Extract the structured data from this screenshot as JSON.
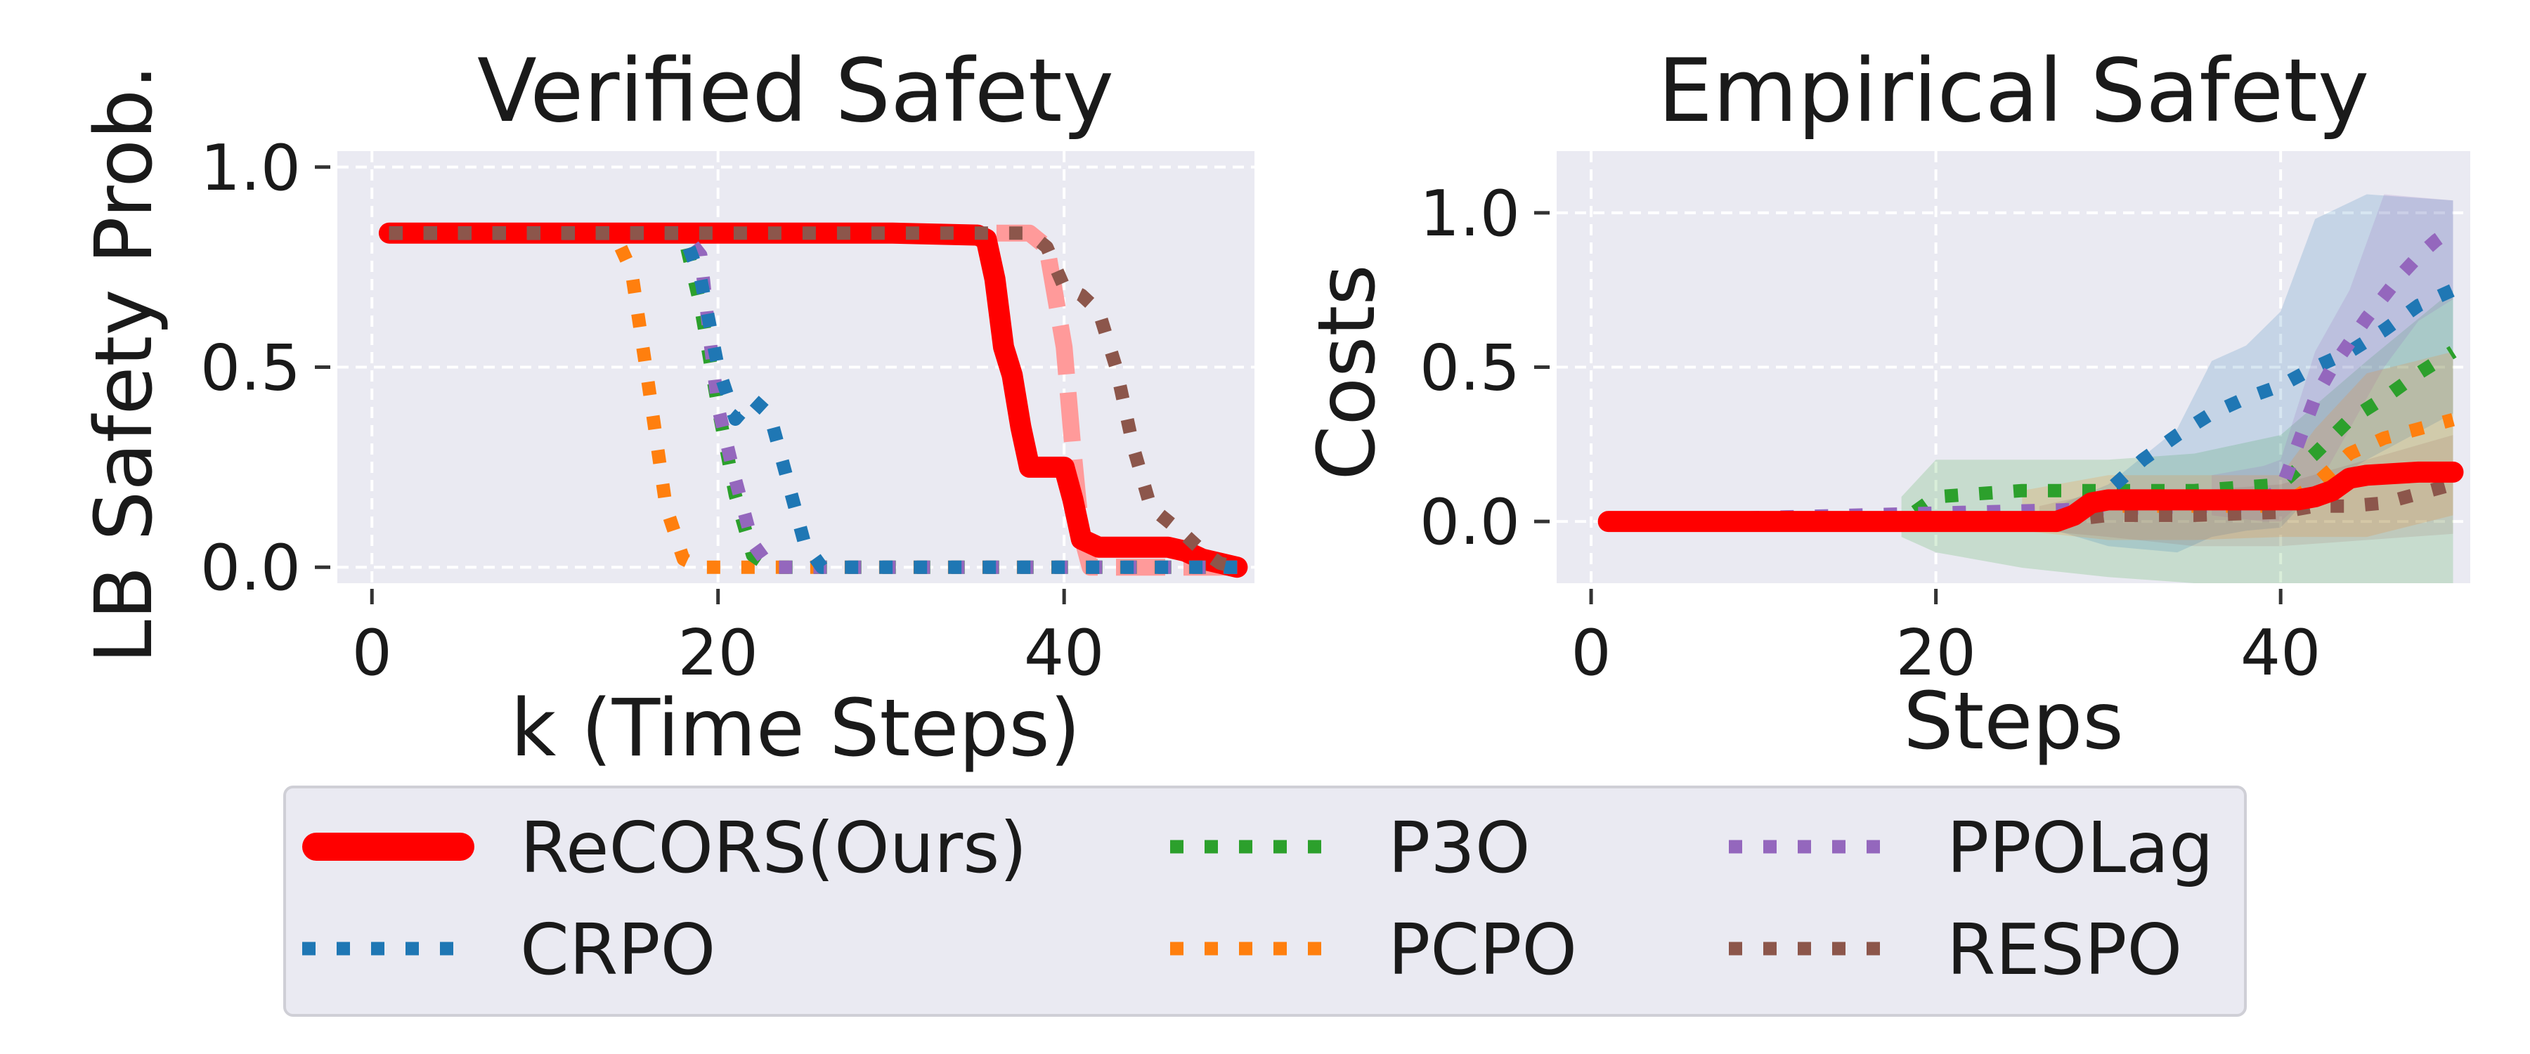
{
  "colors": {
    "panel_bg": "#eaeaf2",
    "grid": "#ffffff",
    "recors": "#ff0000",
    "recors_light": "#ff9a9a",
    "crpo": "#1f77b4",
    "p3o": "#2ca02c",
    "pcpo": "#ff7f0e",
    "ppolag": "#9467bd",
    "respo": "#8c564b"
  },
  "chart_data": [
    {
      "type": "line",
      "title": "Verified Safety",
      "xlabel": "k (Time Steps)",
      "ylabel": "LB Safety Prob.",
      "xlim": [
        -2,
        51
      ],
      "ylim": [
        -0.04,
        1.04
      ],
      "xticks": [
        0,
        20,
        40
      ],
      "xtick_labels": [
        "0",
        "20",
        "40"
      ],
      "yticks": [
        0.0,
        0.5,
        1.0
      ],
      "ytick_labels": [
        "0.0",
        "0.5",
        "1.0"
      ],
      "grid": true,
      "series": [
        {
          "name": "ReCORS(Ours) (lower bound, faint)",
          "key": "recors_light",
          "style": "dashed",
          "x": [
            1,
            37,
            38,
            39,
            40,
            40.5,
            41,
            41.5,
            50
          ],
          "y": [
            0.835,
            0.835,
            0.835,
            0.8,
            0.55,
            0.3,
            0.08,
            0.0,
            0.0
          ]
        },
        {
          "name": "ReCORS(Ours)",
          "key": "recors",
          "style": "solid",
          "x": [
            1,
            30,
            35,
            35.5,
            36,
            36.5,
            37,
            37.5,
            38,
            39,
            40,
            40.5,
            41,
            42,
            46,
            47,
            48,
            49,
            50
          ],
          "y": [
            0.835,
            0.835,
            0.83,
            0.82,
            0.72,
            0.55,
            0.48,
            0.35,
            0.25,
            0.25,
            0.25,
            0.17,
            0.07,
            0.05,
            0.05,
            0.04,
            0.02,
            0.01,
            0.0
          ]
        },
        {
          "name": "PCPO",
          "key": "pcpo",
          "style": "dotted",
          "x": [
            1,
            14,
            15,
            16,
            17,
            18,
            19,
            20,
            50
          ],
          "y": [
            0.835,
            0.835,
            0.74,
            0.45,
            0.15,
            0.02,
            0.0,
            0.0,
            0.0
          ]
        },
        {
          "name": "P3O",
          "key": "p3o",
          "style": "dotted",
          "x": [
            1,
            18,
            19,
            20,
            21,
            22,
            23,
            50
          ],
          "y": [
            0.835,
            0.835,
            0.65,
            0.4,
            0.18,
            0.03,
            0.0,
            0.0
          ]
        },
        {
          "name": "PPOLag",
          "key": "ppolag",
          "style": "dotted",
          "x": [
            1,
            18,
            19,
            19.5,
            20,
            21,
            22,
            23,
            50
          ],
          "y": [
            0.835,
            0.835,
            0.78,
            0.58,
            0.4,
            0.22,
            0.06,
            0.0,
            0.0
          ]
        },
        {
          "name": "CRPO",
          "key": "crpo",
          "style": "dotted",
          "x": [
            1,
            18,
            19,
            20,
            21,
            22,
            23,
            24,
            25,
            26,
            50
          ],
          "y": [
            0.835,
            0.835,
            0.72,
            0.5,
            0.37,
            0.42,
            0.38,
            0.22,
            0.06,
            0.0,
            0.0
          ]
        },
        {
          "name": "RESPO",
          "key": "respo",
          "style": "dotted",
          "x": [
            1,
            38,
            39,
            40,
            41,
            42,
            43,
            44,
            45,
            47,
            48,
            49,
            50
          ],
          "y": [
            0.835,
            0.835,
            0.8,
            0.7,
            0.68,
            0.64,
            0.5,
            0.3,
            0.15,
            0.08,
            0.04,
            0.01,
            0.0
          ]
        }
      ]
    },
    {
      "type": "line",
      "title": "Empirical Safety",
      "xlabel": "Steps",
      "ylabel": "Costs",
      "xlim": [
        -2,
        51
      ],
      "ylim": [
        -0.2,
        1.2
      ],
      "xticks": [
        0,
        20,
        40
      ],
      "xtick_labels": [
        "0",
        "20",
        "40"
      ],
      "yticks": [
        0.0,
        0.5,
        1.0
      ],
      "ytick_labels": [
        "0.0",
        "0.5",
        "1.0"
      ],
      "grid": true,
      "bands": [
        {
          "key": "p3o",
          "opacity": 0.18,
          "x": [
            18,
            20,
            25,
            30,
            35,
            40,
            45,
            50
          ],
          "upper": [
            0.08,
            0.2,
            0.2,
            0.2,
            0.22,
            0.28,
            0.52,
            0.75
          ],
          "lower": [
            -0.05,
            -0.1,
            -0.15,
            -0.18,
            -0.2,
            -0.2,
            -0.2,
            -0.2
          ]
        },
        {
          "key": "crpo",
          "opacity": 0.18,
          "x": [
            27,
            30,
            34,
            36,
            38,
            40,
            42,
            45,
            50
          ],
          "upper": [
            0.05,
            0.12,
            0.3,
            0.52,
            0.57,
            0.68,
            0.98,
            1.06,
            1.04
          ],
          "lower": [
            -0.03,
            -0.08,
            -0.1,
            -0.05,
            -0.03,
            -0.02,
            0.1,
            0.2,
            0.35
          ]
        },
        {
          "key": "ppolag",
          "opacity": 0.18,
          "x": [
            36,
            39,
            40,
            42,
            44,
            46,
            48,
            50
          ],
          "upper": [
            0.15,
            0.18,
            0.2,
            0.55,
            0.75,
            1.06,
            1.05,
            1.04
          ],
          "lower": [
            0.02,
            0.0,
            0.0,
            0.1,
            0.3,
            0.5,
            0.65,
            0.72
          ]
        },
        {
          "key": "pcpo",
          "opacity": 0.18,
          "x": [
            25,
            30,
            35,
            40,
            42,
            45,
            50
          ],
          "upper": [
            0.1,
            0.15,
            0.15,
            0.15,
            0.3,
            0.48,
            0.55
          ],
          "lower": [
            -0.03,
            -0.06,
            -0.06,
            -0.05,
            -0.05,
            -0.05,
            0.02
          ]
        },
        {
          "key": "respo",
          "opacity": 0.14,
          "x": [
            26,
            30,
            35,
            40,
            45,
            50
          ],
          "upper": [
            0.05,
            0.1,
            0.1,
            0.12,
            0.2,
            0.28
          ],
          "lower": [
            -0.03,
            -0.05,
            -0.08,
            -0.08,
            -0.06,
            -0.04
          ]
        }
      ],
      "series": [
        {
          "name": "P3O",
          "key": "p3o",
          "style": "dotted",
          "x": [
            1,
            18,
            19,
            20,
            25,
            30,
            35,
            40,
            42,
            44,
            46,
            48,
            50
          ],
          "y": [
            0.0,
            0.0,
            0.04,
            0.08,
            0.1,
            0.1,
            0.1,
            0.12,
            0.22,
            0.33,
            0.4,
            0.48,
            0.55
          ]
        },
        {
          "name": "CRPO",
          "key": "crpo",
          "style": "dotted",
          "x": [
            1,
            27,
            30,
            32,
            34,
            36,
            38,
            40,
            42,
            44,
            46,
            48,
            50
          ],
          "y": [
            0.0,
            0.0,
            0.1,
            0.2,
            0.28,
            0.35,
            0.4,
            0.44,
            0.5,
            0.55,
            0.62,
            0.7,
            0.75
          ]
        },
        {
          "name": "PPOLag",
          "key": "ppolag",
          "style": "dotted",
          "x": [
            1,
            36,
            38,
            40,
            41,
            42,
            43,
            44,
            45,
            46,
            47,
            48,
            49,
            50
          ],
          "y": [
            0.0,
            0.05,
            0.05,
            0.1,
            0.25,
            0.4,
            0.5,
            0.58,
            0.66,
            0.73,
            0.8,
            0.86,
            0.91,
            0.95
          ]
        },
        {
          "name": "PCPO",
          "key": "pcpo",
          "style": "dotted",
          "x": [
            1,
            27,
            28,
            30,
            35,
            40,
            42,
            44,
            46,
            48,
            50
          ],
          "y": [
            0.0,
            0.0,
            0.02,
            0.05,
            0.05,
            0.05,
            0.12,
            0.22,
            0.27,
            0.3,
            0.33
          ]
        },
        {
          "name": "RESPO",
          "key": "respo",
          "style": "dotted",
          "x": [
            1,
            27,
            30,
            35,
            40,
            42,
            44,
            46,
            48,
            50
          ],
          "y": [
            0.0,
            0.0,
            0.02,
            0.02,
            0.03,
            0.05,
            0.05,
            0.06,
            0.09,
            0.12
          ]
        },
        {
          "name": "ReCORS(Ours)",
          "key": "recors",
          "style": "solid",
          "x": [
            1,
            27,
            28,
            29,
            30,
            35,
            40,
            41,
            42,
            43,
            44,
            45,
            48,
            50
          ],
          "y": [
            0.0,
            0.0,
            0.02,
            0.06,
            0.07,
            0.07,
            0.07,
            0.07,
            0.08,
            0.1,
            0.14,
            0.15,
            0.16,
            0.16
          ]
        }
      ]
    }
  ],
  "legend": {
    "items": [
      {
        "label": "ReCORS(Ours)",
        "key": "recors",
        "style": "solid"
      },
      {
        "label": "CRPO",
        "key": "crpo",
        "style": "dotted"
      },
      {
        "label": "P3O",
        "key": "p3o",
        "style": "dotted"
      },
      {
        "label": "PCPO",
        "key": "pcpo",
        "style": "dotted"
      },
      {
        "label": "PPOLag",
        "key": "ppolag",
        "style": "dotted"
      },
      {
        "label": "RESPO",
        "key": "respo",
        "style": "dotted"
      }
    ]
  }
}
